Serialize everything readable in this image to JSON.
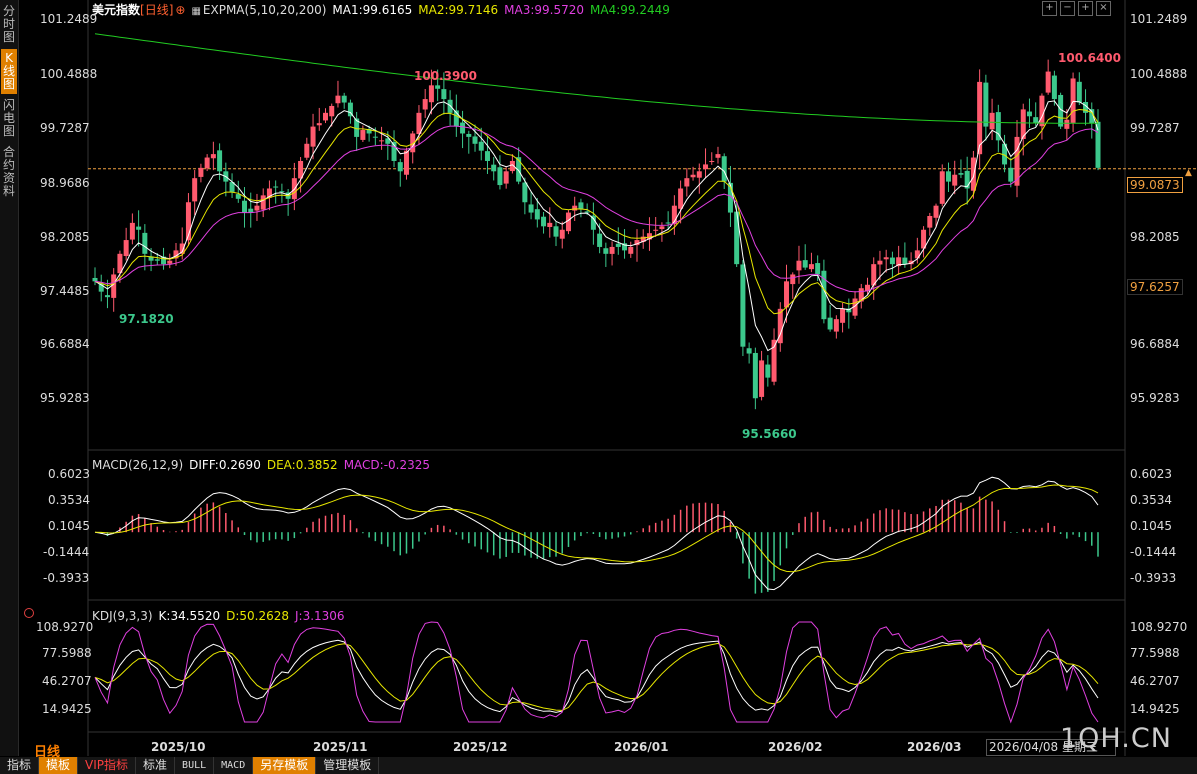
{
  "side_tabs": [
    "分时图",
    "K线图",
    "闪电图",
    "合约资料"
  ],
  "main_header": {
    "symbol": "美元指数",
    "period_tag": "[日线]",
    "indicator": "EXPMA(5,10,20,200)",
    "ma1": "MA1:99.6165",
    "ma2": "MA2:99.7146",
    "ma3": "MA3:99.5720",
    "ma4": "MA4:99.2449"
  },
  "window_buttons": [
    "+",
    "−",
    "+",
    "×"
  ],
  "price_axis": [
    "101.2489",
    "100.4888",
    "99.7287",
    "98.9686",
    "98.2085",
    "97.4485",
    "96.6884",
    "95.9283"
  ],
  "price_marks": {
    "current": "99.0873",
    "cursor": "97.6257",
    "high_left": "100.3900",
    "high_right": "100.6400",
    "low_left": "97.1820",
    "low_mid": "95.5660"
  },
  "macd_header": {
    "name": "MACD(26,12,9)",
    "diff": "DIFF:0.2690",
    "dea": "DEA:0.3852",
    "macd": "MACD:-0.2325"
  },
  "macd_axis": [
    "0.6023",
    "0.3534",
    "0.1045",
    "-0.1444",
    "-0.3933"
  ],
  "kdj_header": {
    "name": "KDJ(9,3,3)",
    "k": "K:34.5520",
    "d": "D:50.2628",
    "j": "J:3.1306"
  },
  "kdj_axis": [
    "108.9270",
    "77.5988",
    "46.2707",
    "14.9425"
  ],
  "date_axis": [
    "2025/10",
    "2025/11",
    "2025/12",
    "2026/01",
    "2026/02",
    "2026/03"
  ],
  "period_label": "日线",
  "date_box": "2026/04/08 星期三",
  "watermark": "1QH.CN",
  "bottom_tabs": [
    "指标",
    "模板",
    "VIP指标",
    "标准",
    "BULL",
    "MACD",
    "另存模板",
    "管理模板"
  ],
  "colors": {
    "up": "#ff5a6e",
    "down": "#3cc88c",
    "ma1": "#ffffff",
    "ma2": "#e6e600",
    "ma3": "#e040e0",
    "ma4": "#22cc22",
    "accent": "#e08000"
  },
  "chart_data": {
    "type": "candlestick",
    "closes": [
      97.45,
      97.3,
      97.22,
      97.55,
      97.85,
      98.05,
      98.3,
      98.2,
      97.85,
      97.75,
      97.75,
      97.7,
      97.75,
      97.9,
      98.0,
      98.6,
      98.95,
      99.1,
      99.25,
      99.3,
      99.05,
      98.9,
      98.75,
      98.65,
      98.45,
      98.45,
      98.55,
      98.7,
      98.8,
      98.82,
      98.75,
      98.65,
      98.95,
      99.2,
      99.45,
      99.7,
      99.75,
      99.9,
      100.0,
      100.15,
      100.05,
      99.85,
      99.55,
      99.65,
      99.6,
      99.55,
      99.5,
      99.45,
      99.2,
      99.05,
      99.35,
      99.6,
      99.9,
      100.1,
      100.3,
      100.25,
      100.1,
      99.9,
      99.7,
      99.6,
      99.55,
      99.45,
      99.35,
      99.2,
      99.05,
      98.85,
      99.05,
      99.2,
      98.9,
      98.6,
      98.45,
      98.35,
      98.25,
      98.3,
      98.1,
      98.2,
      98.45,
      98.55,
      98.5,
      98.45,
      98.2,
      97.95,
      97.85,
      97.95,
      97.95,
      97.9,
      97.95,
      98.05,
      98.1,
      98.15,
      98.2,
      98.25,
      98.3,
      98.55,
      98.8,
      98.95,
      99.0,
      99.05,
      99.15,
      99.2,
      99.3,
      98.9,
      98.45,
      97.7,
      96.5,
      96.4,
      95.75,
      96.3,
      96.05,
      96.6,
      97.05,
      97.45,
      97.55,
      97.75,
      97.65,
      97.7,
      97.55,
      96.9,
      96.75,
      96.9,
      97.05,
      97.0,
      97.2,
      97.35,
      97.4,
      97.7,
      97.75,
      97.8,
      97.7,
      97.8,
      97.7,
      97.75,
      97.9,
      98.2,
      98.4,
      98.55,
      99.05,
      98.9,
      99.0,
      99.0,
      98.8,
      99.25,
      100.35,
      99.7,
      99.9,
      99.5,
      99.15,
      98.9,
      99.55,
      99.95,
      99.85,
      99.75,
      100.15,
      100.5,
      100.1,
      99.7,
      99.8,
      100.4,
      100.05,
      99.9,
      99.75,
      99.1
    ],
    "price_range": [
      95.55,
      101.25
    ],
    "high": 100.64,
    "low": 95.566,
    "current_price": 99.0873,
    "cursor_price": 97.6257,
    "series_colors": [
      "#ffffff",
      "#e6e600",
      "#e040e0",
      "#22cc22"
    ]
  }
}
